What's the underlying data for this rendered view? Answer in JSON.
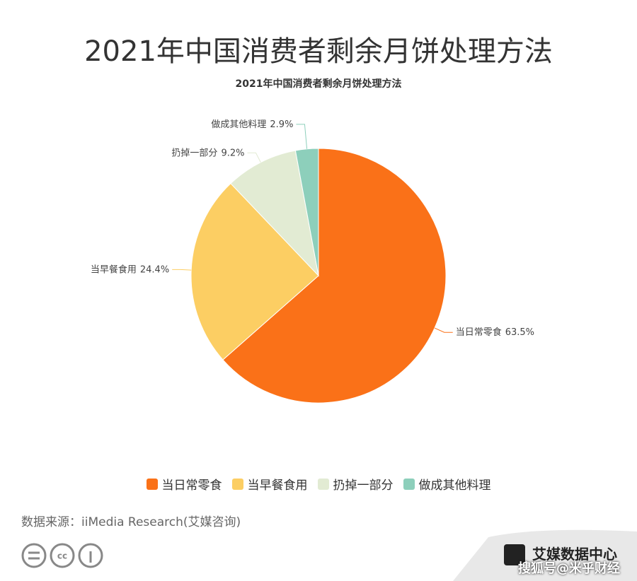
{
  "header": {
    "title": "2021年中国消费者剩余月饼处理方法"
  },
  "chart_data": {
    "type": "pie",
    "title": "2021年中国消费者剩余月饼处理方法",
    "categories": [
      "当日常零食",
      "当早餐食用",
      "扔掉一部分",
      "做成其他料理"
    ],
    "values": [
      63.5,
      24.4,
      9.2,
      2.9
    ],
    "value_labels": [
      "63.5%",
      "24.4%",
      "9.2%",
      "2.9%"
    ],
    "colors": [
      "#fa7118",
      "#fcce63",
      "#e2ebd3",
      "#8dcfbb"
    ]
  },
  "footer": {
    "source": "数据来源：iiMedia Research(艾媒咨询)",
    "logo": "艾媒数据中心",
    "watermark": "搜狐号@米乎财经"
  }
}
